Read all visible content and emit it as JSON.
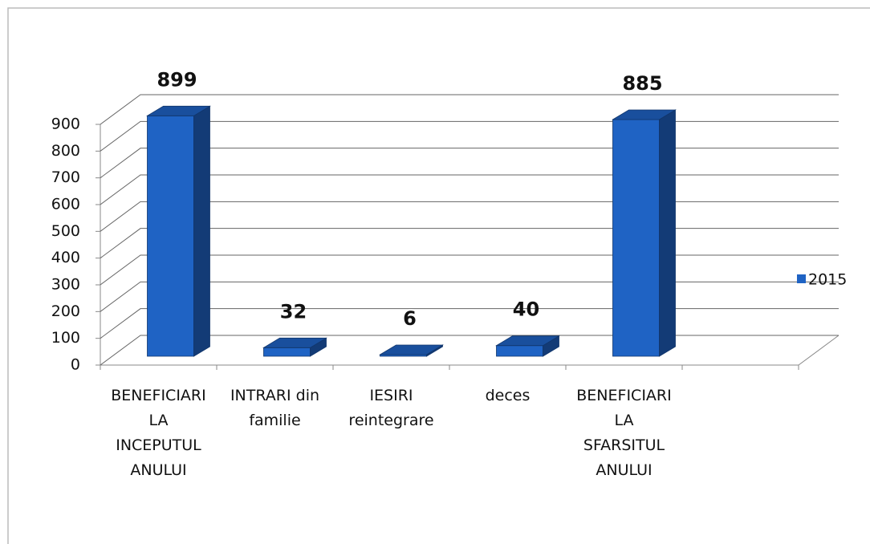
{
  "chart_data": {
    "type": "bar3d",
    "categories": [
      "BENEFICIARI LA INCEPUTUL ANULUI",
      "INTRARI din familie",
      "IESIRI reintegrare",
      "deces",
      "BENEFICIARI LA SFARSITUL ANULUI",
      null
    ],
    "series": [
      {
        "name": "2015",
        "color": "#1f63c4",
        "values": [
          899,
          32,
          6,
          40,
          885,
          null
        ]
      }
    ],
    "ylim": [
      0,
      900
    ],
    "yticks": [
      0,
      100,
      200,
      300,
      400,
      500,
      600,
      700,
      800,
      900
    ],
    "grid": true,
    "legend": "right"
  }
}
